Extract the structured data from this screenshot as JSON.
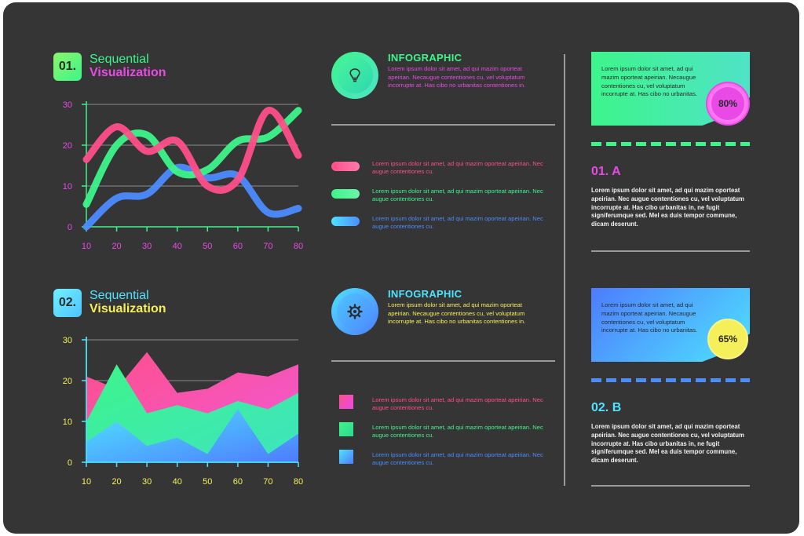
{
  "section1": {
    "number": "01.",
    "title_line1": "Sequential",
    "title_line2": "Visualization"
  },
  "section2": {
    "number": "02.",
    "title_line1": "Sequential",
    "title_line2": "Visualization"
  },
  "info1": {
    "title": "INFOGRAPHIC",
    "text": "Lorem ipsum dolor sit amet, ad qui mazim oporteat apeirian. Necaugue contentiones cu, vel voluptatum incorrupte at. Has cibo no urbanitas contentiones in."
  },
  "info2": {
    "title": "INFOGRAPHIC",
    "text": "Lorem ipsum dolor sit amet, ad qui mazim oporteat apeirian. Necaugue contentiones cu, vel voluptatum incorrupte at. Has cibo no urbanitas contentiones in."
  },
  "legend1": [
    {
      "text": "Lorem ipsum dolor sit amet, ad qui mazim oporteat apeirian. Nec augue contentiones cu.",
      "color": "#ff4f8b"
    },
    {
      "text": "Lorem ipsum dolor sit amet, ad qui mazim oporteat apeirian. Nec augue contentiones cu.",
      "color": "#3df58a"
    },
    {
      "text": "Lorem ipsum dolor sit amet, ad qui mazim oporteat apeirian. Nec augue contentiones cu.",
      "color": "#4d8cff"
    }
  ],
  "legend2": [
    {
      "text": "Lorem ipsum dolor sit amet, ad qui mazim oporteat apeirian. Nec augue contentiones cu.",
      "color": "#ff4f8b"
    },
    {
      "text": "Lorem ipsum dolor sit amet, ad qui mazim oporteat apeirian. Nec augue contentiones cu.",
      "color": "#3df58a"
    },
    {
      "text": "Lorem ipsum dolor sit amet, ad qui mazim oporteat apeirian. Nec augue contentiones cu.",
      "color": "#4d8cff"
    }
  ],
  "card1": {
    "text": "Lorem ipsum dolor sit amet, ad qui mazim oporteat apeirian. Necaugue contentiones cu, vel voluptatum incorrupte at. Has cibo no urbanitas.",
    "percent": "80%",
    "percent_value": 80
  },
  "card2": {
    "text": "Lorem ipsum dolor sit amet, ad qui mazim oporteat apeirian. Necaugue contentiones cu, vel voluptatum incorrupte at. Has cibo no urbanitas.",
    "percent": "65%",
    "percent_value": 65
  },
  "pointA": {
    "heading": "01. A",
    "text": "Lorem ipsum dolor sit amet, ad qui mazim oporteat apeirian. Nec augue contentiones cu, vel voluptatum incorrupte at. Has cibo urbanitas in, ne fugit signiferumque sed. Mel ea duis tempor commune, dicam deserunt."
  },
  "pointB": {
    "heading": "02. B",
    "text": "Lorem ipsum dolor sit amet, ad qui mazim oporteat apeirian. Nec augue contentiones cu, vel voluptatum incorrupte at. Has cibo urbanitas in, ne fugit signiferumque sed. Mel ea duis tempor commune, dicam deserunt."
  },
  "icons": {
    "info1": "lightbulb-icon",
    "info2": "gear-icon"
  },
  "colors": {
    "background": "#353535",
    "pink": "#ff4f8b",
    "green": "#3df58a",
    "blue": "#4d8cff",
    "magenta": "#e94ae6",
    "yellow": "#f5f05a",
    "cyan": "#4fe3ff"
  },
  "chart_data": [
    {
      "type": "line",
      "x": [
        10,
        20,
        30,
        40,
        50,
        60,
        70,
        80
      ],
      "xticks": [
        "10",
        "20",
        "30",
        "40",
        "50",
        "60",
        "70",
        "80"
      ],
      "yticks": [
        "0",
        "10",
        "20",
        "30"
      ],
      "ylim": [
        0,
        30
      ],
      "xlim": [
        10,
        80
      ],
      "grid": true,
      "series": [
        {
          "color": "#ff4f8b",
          "values": [
            16.5,
            24.5,
            18.5,
            21,
            10,
            11.5,
            28.5,
            17.5
          ]
        },
        {
          "color": "#3df58a",
          "values": [
            5.5,
            20,
            22.5,
            13.5,
            14,
            21,
            22,
            28.5
          ]
        },
        {
          "color": "#4d8cff",
          "values": [
            0,
            7,
            8,
            14.5,
            12,
            12.5,
            3.5,
            4.5
          ]
        }
      ]
    },
    {
      "type": "area",
      "x": [
        10,
        20,
        30,
        40,
        50,
        60,
        70,
        80
      ],
      "xticks": [
        "10",
        "20",
        "30",
        "40",
        "50",
        "60",
        "70",
        "80"
      ],
      "yticks": [
        "0",
        "10",
        "20",
        "30"
      ],
      "ylim": [
        0,
        30
      ],
      "xlim": [
        10,
        80
      ],
      "grid": true,
      "series": [
        {
          "color": "#ff4f8b",
          "values": [
            21,
            18,
            27,
            17,
            18,
            22,
            21,
            24
          ]
        },
        {
          "color": "#3df58a",
          "values": [
            10,
            24,
            12,
            14,
            12,
            15,
            13,
            17
          ]
        },
        {
          "color": "#4d8cff",
          "values": [
            5,
            10,
            4,
            6,
            2,
            13,
            2,
            7
          ]
        }
      ]
    }
  ]
}
